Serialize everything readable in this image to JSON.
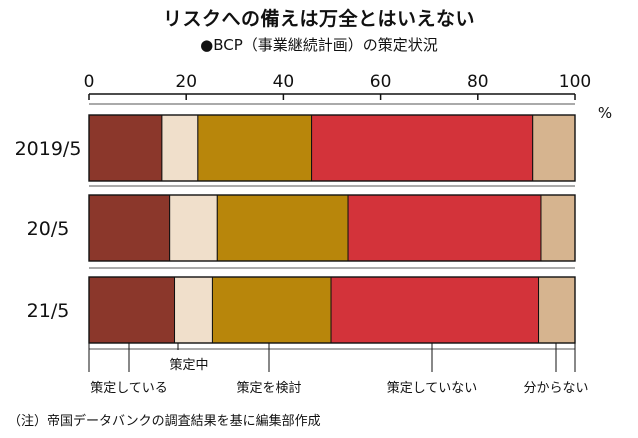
{
  "title": "リスクへの備えは万全とはいえない",
  "subtitle": "●BCP（事業継続計画）の策定状況",
  "note": "（注）帝国データバンクの調査結果を基に編集部作成",
  "chart_data": {
    "type": "bar",
    "stacked": true,
    "orientation": "horizontal",
    "unit": "%",
    "xlim": [
      0,
      100
    ],
    "xticks": [
      "0",
      "20",
      "40",
      "60",
      "80",
      "100"
    ],
    "categories": [
      "2019/5",
      "20/5",
      "21/5"
    ],
    "series": [
      {
        "name": "策定している",
        "color": "#8b372b",
        "values": [
          15.0,
          16.6,
          17.6
        ]
      },
      {
        "name": "策定中",
        "color": "#f0dfcb",
        "values": [
          7.4,
          9.8,
          7.8
        ]
      },
      {
        "name": "策定を検討",
        "color": "#b8860b",
        "values": [
          23.4,
          26.9,
          24.4
        ]
      },
      {
        "name": "策定していない",
        "color": "#d3333a",
        "values": [
          45.5,
          39.7,
          42.7
        ]
      },
      {
        "name": "分からない",
        "color": "#d6b48f",
        "values": [
          8.7,
          7.0,
          7.5
        ]
      }
    ],
    "legend_position": "bottom"
  }
}
